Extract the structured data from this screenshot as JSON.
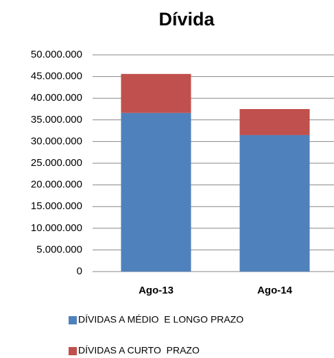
{
  "chart_data": {
    "type": "bar",
    "stacked": true,
    "title": "Dívida",
    "categories": [
      "Ago-13",
      "Ago-14"
    ],
    "series": [
      {
        "name": "DÍVIDAS A MÉDIO  E LONGO PRAZO",
        "color": "#4f81bd",
        "values": [
          36600000,
          31500000
        ]
      },
      {
        "name": "DÍVIDAS A CURTO  PRAZO",
        "color": "#c0504d",
        "values": [
          9000000,
          6000000
        ]
      }
    ],
    "ylim": [
      0,
      50000000
    ],
    "yticks": [
      0,
      {
        "value": 5000000,
        "label": "5.000.000"
      },
      {
        "value": 10000000,
        "label": "10.000.000"
      },
      {
        "value": 15000000,
        "label": "15.000.000"
      },
      {
        "value": 20000000,
        "label": "20.000.000"
      },
      {
        "value": 25000000,
        "label": "25.000.000"
      },
      {
        "value": 30000000,
        "label": "30.000.000"
      },
      {
        "value": 35000000,
        "label": "35.000.000"
      },
      {
        "value": 40000000,
        "label": "40.000.000"
      },
      {
        "value": 45000000,
        "label": "45.000.000"
      },
      {
        "value": 50000000,
        "label": "50.000.000"
      }
    ],
    "grid": true,
    "legend": "bottom"
  }
}
